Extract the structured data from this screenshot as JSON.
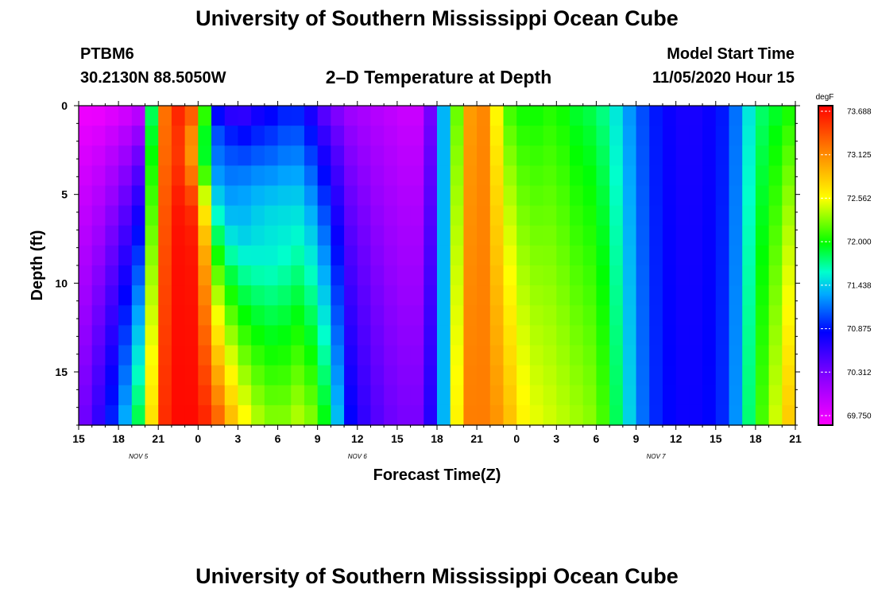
{
  "header": {
    "title_top": "University of Southern Mississippi Ocean Cube",
    "title_bottom": "University of Southern Mississippi Ocean Cube",
    "station_id": "PTBM6",
    "station_coords": "30.2130N 88.5050W",
    "model_start_label": "Model Start Time",
    "model_start_value": "11/05/2020 Hour 15"
  },
  "chart_data": {
    "type": "heatmap",
    "title": "2–D Temperature at Depth",
    "xlabel": "Forecast Time(Z)",
    "ylabel": "Depth (ft)",
    "x_range_hours": [
      0,
      54
    ],
    "x_start": "2020-11-05 15Z",
    "x_tick_labels": [
      "15",
      "18",
      "21",
      "0",
      "3",
      "6",
      "9",
      "12",
      "15",
      "18",
      "21",
      "0",
      "3",
      "6",
      "9",
      "12",
      "15",
      "18",
      "21"
    ],
    "date_labels": [
      {
        "text": "NOV 5",
        "hour": 4.5
      },
      {
        "text": "NOV 6",
        "hour": 21
      },
      {
        "text": "NOV 7",
        "hour": 43.5
      }
    ],
    "ylim": [
      0,
      18
    ],
    "y_ticks": [
      0,
      5,
      10,
      15
    ],
    "colorbar": {
      "unit": "degF",
      "min": 69.75,
      "max": 73.688,
      "tick_labels": [
        "73.688",
        "73.125",
        "72.562",
        "72.000",
        "71.438",
        "70.875",
        "70.312",
        "69.750"
      ]
    },
    "grid_hours_step": 1,
    "grid_depth_ft": [
      0,
      1.125,
      2.25,
      3.375,
      4.5,
      5.625,
      6.75,
      7.875,
      9,
      10.125,
      11.25,
      12.375,
      13.5,
      14.625,
      15.75,
      16.875
    ],
    "temperature_columns_surface_bottom": [
      [
        69.8,
        70.45
      ],
      [
        69.8,
        70.7
      ],
      [
        69.85,
        71.0
      ],
      [
        69.9,
        71.4
      ],
      [
        70.0,
        71.9
      ],
      [
        71.8,
        72.7
      ],
      [
        73.2,
        73.5
      ],
      [
        73.6,
        73.65
      ],
      [
        73.55,
        73.65
      ],
      [
        72.3,
        73.55
      ],
      [
        70.6,
        73.3
      ],
      [
        70.4,
        72.9
      ],
      [
        70.5,
        72.6
      ],
      [
        70.7,
        72.4
      ],
      [
        70.8,
        72.3
      ],
      [
        70.9,
        72.3
      ],
      [
        70.9,
        72.4
      ],
      [
        70.7,
        72.3
      ],
      [
        70.45,
        72.0
      ],
      [
        70.3,
        71.45
      ],
      [
        70.2,
        70.9
      ],
      [
        70.15,
        70.7
      ],
      [
        70.1,
        70.55
      ],
      [
        70.05,
        70.45
      ],
      [
        70.0,
        70.4
      ],
      [
        70.0,
        70.4
      ],
      [
        70.4,
        70.75
      ],
      [
        71.4,
        71.4
      ],
      [
        72.2,
        72.6
      ],
      [
        73.0,
        73.15
      ],
      [
        73.1,
        73.15
      ],
      [
        72.55,
        73.05
      ],
      [
        72.1,
        72.85
      ],
      [
        72.0,
        72.6
      ],
      [
        72.0,
        72.5
      ],
      [
        72.05,
        72.45
      ],
      [
        72.0,
        72.4
      ],
      [
        71.9,
        72.35
      ],
      [
        71.85,
        72.3
      ],
      [
        71.75,
        72.15
      ],
      [
        71.55,
        71.85
      ],
      [
        71.3,
        71.5
      ],
      [
        71.1,
        71.2
      ],
      [
        70.95,
        71.0
      ],
      [
        70.85,
        70.9
      ],
      [
        70.8,
        70.85
      ],
      [
        70.8,
        70.85
      ],
      [
        70.85,
        70.9
      ],
      [
        70.95,
        71.0
      ],
      [
        71.2,
        71.3
      ],
      [
        71.55,
        71.8
      ],
      [
        71.8,
        72.15
      ],
      [
        71.9,
        72.45
      ],
      [
        72.0,
        72.8
      ]
    ],
    "mid_depth_minimum_cells": [
      {
        "hour": 10.5,
        "depth_ft": 2.5,
        "value": 71.2
      },
      {
        "hour": 12.5,
        "depth_ft": 5.5,
        "value": 71.35
      },
      {
        "hour": 14.5,
        "depth_ft": 7.0,
        "value": 71.6
      }
    ]
  }
}
